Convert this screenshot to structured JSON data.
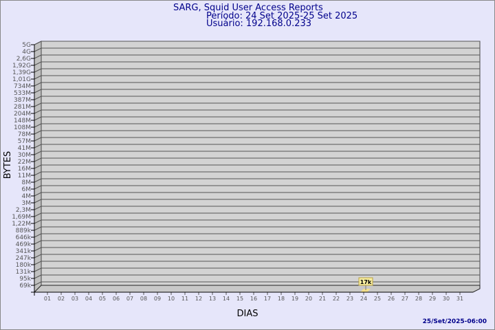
{
  "header": {
    "title": "SARG, Squid User Access Reports",
    "period": "Período: 24 Set 2025-25 Set 2025",
    "user": "Usuário: 192.168.0.233"
  },
  "footer": {
    "timestamp": "25/Set/2025-06:00"
  },
  "colors": {
    "background": "#e6e6fa",
    "plot": "#d3d3d3",
    "title": "#00008b",
    "bar": "#f5e08a"
  },
  "chart_data": {
    "type": "bar",
    "xlabel": "DIAS",
    "ylabel": "BYTES",
    "categories": [
      "01",
      "02",
      "03",
      "04",
      "05",
      "06",
      "07",
      "08",
      "09",
      "10",
      "11",
      "12",
      "13",
      "14",
      "15",
      "16",
      "17",
      "18",
      "19",
      "20",
      "21",
      "22",
      "23",
      "24",
      "25",
      "26",
      "27",
      "28",
      "29",
      "30",
      "31"
    ],
    "y_ticks": [
      "5G",
      "4G",
      "2,6G",
      "1,92G",
      "1,39G",
      "1,01G",
      "734M",
      "533M",
      "387M",
      "281M",
      "204M",
      "148M",
      "108M",
      "78M",
      "57M",
      "41M",
      "30M",
      "22M",
      "16M",
      "11M",
      "8M",
      "6M",
      "4M",
      "3M",
      "2,3M",
      "1,69M",
      "1,22M",
      "889k",
      "646k",
      "469k",
      "341k",
      "247k",
      "180k",
      "131k",
      "95k",
      "69k"
    ],
    "y_scale": "log",
    "grid": true,
    "series": [
      {
        "points": [
          {
            "x": "24",
            "value": 17000,
            "label": "17k"
          }
        ]
      }
    ]
  }
}
